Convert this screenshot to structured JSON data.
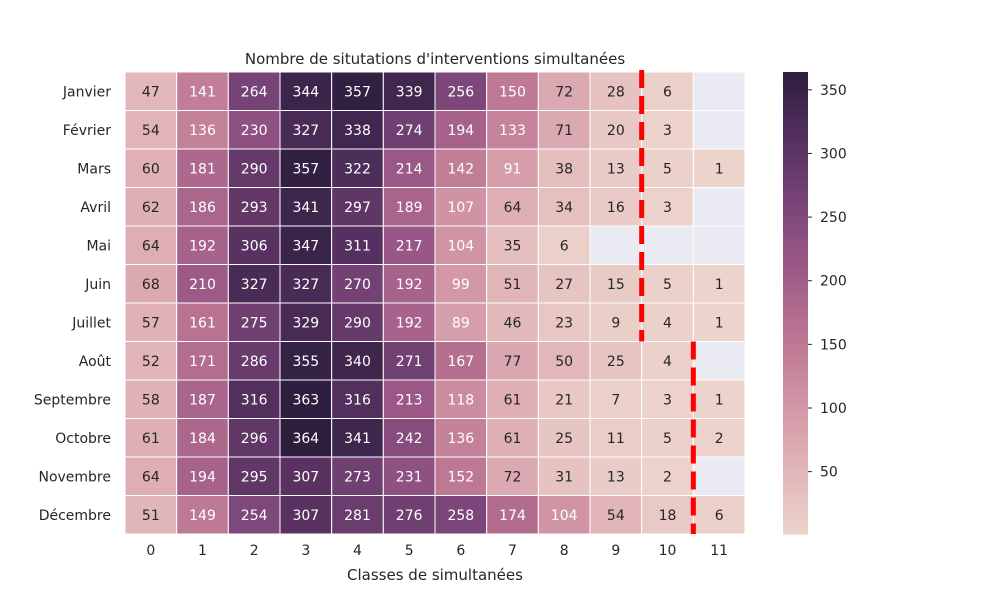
{
  "chart_data": {
    "type": "heatmap",
    "title": "Nombre de situtations d'interventions simultanées",
    "xlabel": "Classes de simultanées",
    "ylabel": "",
    "x_categories": [
      "0",
      "1",
      "2",
      "3",
      "4",
      "5",
      "6",
      "7",
      "8",
      "9",
      "10",
      "11"
    ],
    "y_categories": [
      "Janvier",
      "Février",
      "Mars",
      "Avril",
      "Mai",
      "Juin",
      "Juillet",
      "Août",
      "Septembre",
      "Octobre",
      "Novembre",
      "Décembre"
    ],
    "values": [
      [
        47,
        141,
        264,
        344,
        357,
        339,
        256,
        150,
        72,
        28,
        6,
        null
      ],
      [
        54,
        136,
        230,
        327,
        338,
        274,
        194,
        133,
        71,
        20,
        3,
        null
      ],
      [
        60,
        181,
        290,
        357,
        322,
        214,
        142,
        91,
        38,
        13,
        5,
        1
      ],
      [
        62,
        186,
        293,
        341,
        297,
        189,
        107,
        64,
        34,
        16,
        3,
        null
      ],
      [
        64,
        192,
        306,
        347,
        311,
        217,
        104,
        35,
        6,
        null,
        null,
        null
      ],
      [
        68,
        210,
        327,
        327,
        270,
        192,
        99,
        51,
        27,
        15,
        5,
        1
      ],
      [
        57,
        161,
        275,
        329,
        290,
        192,
        89,
        46,
        23,
        9,
        4,
        1
      ],
      [
        52,
        171,
        286,
        355,
        340,
        271,
        167,
        77,
        50,
        25,
        4,
        null
      ],
      [
        58,
        187,
        316,
        363,
        316,
        213,
        118,
        61,
        21,
        7,
        3,
        1
      ],
      [
        61,
        184,
        296,
        364,
        341,
        242,
        136,
        61,
        25,
        11,
        5,
        2
      ],
      [
        64,
        194,
        295,
        307,
        273,
        231,
        152,
        72,
        31,
        13,
        2,
        null
      ],
      [
        51,
        149,
        254,
        307,
        281,
        276,
        258,
        174,
        104,
        54,
        18,
        6
      ]
    ],
    "colorbar": {
      "min": 1,
      "max": 364,
      "ticks": [
        50,
        100,
        150,
        200,
        250,
        300,
        350
      ]
    },
    "colormap": [
      "#ecd3cb",
      "#e1b5b8",
      "#d194a5",
      "#bb7592",
      "#9e5a88",
      "#7a4579",
      "#55305f",
      "#2d1e3e"
    ],
    "missing_color": "#eaeaf2",
    "threshold_lines": [
      {
        "rows": [
          "Janvier",
          "Juillet"
        ],
        "between_columns": [
          "9",
          "10"
        ]
      },
      {
        "rows": [
          "Août",
          "Décembre"
        ],
        "between_columns": [
          "10",
          "11"
        ]
      }
    ],
    "threshold_color": "#ff0000",
    "grid": false,
    "legend": "right"
  }
}
